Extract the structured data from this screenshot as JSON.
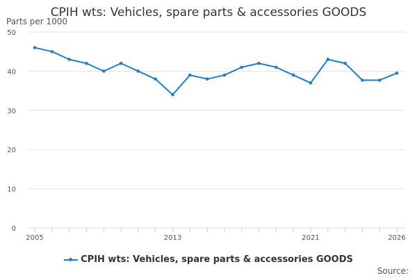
{
  "chart_data": {
    "type": "line",
    "title": "CPIH wts: Vehicles, spare parts & accessories GOODS",
    "ylabel": "Parts per 1000",
    "xlabel": "",
    "x_tick_labels": [
      "2005",
      "2013",
      "2021",
      "2026"
    ],
    "y_tick_labels": [
      "0",
      "10",
      "20",
      "30",
      "40",
      "50"
    ],
    "xlim": [
      2005,
      2026
    ],
    "ylim": [
      0,
      50
    ],
    "grid": true,
    "legend_position": "bottom",
    "series": [
      {
        "name": "CPIH wts: Vehicles, spare parts & accessories GOODS",
        "color": "#1f7fc4",
        "x": [
          2005,
          2006,
          2007,
          2008,
          2009,
          2010,
          2011,
          2012,
          2013,
          2014,
          2015,
          2016,
          2017,
          2018,
          2019,
          2020,
          2021,
          2022,
          2023,
          2024,
          2025,
          2026
        ],
        "values": [
          46,
          45,
          43,
          42,
          40,
          42,
          40,
          38,
          34,
          39,
          38,
          39,
          41,
          42,
          41,
          39,
          37,
          43,
          42,
          37.7,
          37.7,
          39.5
        ]
      }
    ]
  },
  "source_label": "Source:"
}
